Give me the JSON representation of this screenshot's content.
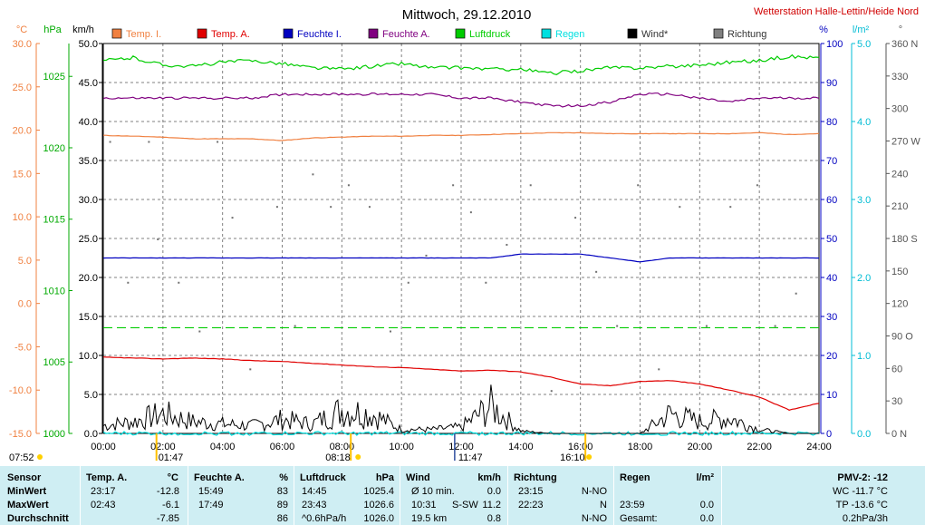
{
  "header": {
    "title": "Mittwoch, 29.12.2010",
    "station": "Wetterstation Halle-Lettin/Heide Nord"
  },
  "units": {
    "celsius": "°C",
    "hpa": "hPa",
    "kmh": "km/h",
    "percent": "%",
    "lm2": "l/m²",
    "degree": "°"
  },
  "legend": [
    {
      "label": "Temp. I.",
      "color": "#f08040"
    },
    {
      "label": "Temp. A.",
      "color": "#e00000"
    },
    {
      "label": "Feuchte I.",
      "color": "#0000c0"
    },
    {
      "label": "Feuchte A.",
      "color": "#800080"
    },
    {
      "label": "Luftdruck",
      "color": "#00cc00"
    },
    {
      "label": "Regen",
      "color": "#00e0e0"
    },
    {
      "label": "Wind*",
      "color": "#000000"
    },
    {
      "label": "Richtung",
      "color": "#808080"
    }
  ],
  "axes": {
    "temp": [
      "30.0",
      "25.0",
      "20.0",
      "15.0",
      "10.0",
      "5.0",
      "0.0",
      "-5.0",
      "-10.0",
      "-15.0"
    ],
    "pressure": [
      "1025",
      "1020",
      "1015",
      "1010",
      "1005",
      "1000"
    ],
    "wind": [
      "50.0",
      "45.0",
      "40.0",
      "35.0",
      "30.0",
      "25.0",
      "20.0",
      "15.0",
      "10.0",
      "5.0",
      "0.0"
    ],
    "humidity": [
      "100",
      "90",
      "80",
      "70",
      "60",
      "50",
      "40",
      "30",
      "20",
      "10",
      "0"
    ],
    "rain": [
      "5.0",
      "4.0",
      "3.0",
      "2.0",
      "1.0",
      "0.0"
    ],
    "direction": [
      "360 N",
      "330",
      "300",
      "270 W",
      "240",
      "210",
      "180 S",
      "150",
      "120",
      "90 O",
      "60",
      "30",
      "0 N"
    ],
    "time": [
      "00:00",
      "02:00",
      "04:00",
      "06:00",
      "08:00",
      "10:00",
      "12:00",
      "14:00",
      "16:00",
      "18:00",
      "20:00",
      "22:00",
      "24:00"
    ]
  },
  "markers": {
    "sunrise": "07:52",
    "temp_min_time": "01:47",
    "sun_max": "08:18",
    "noon": "11:47",
    "sunset": "16:10"
  },
  "colors": {
    "temp_i": "#f08040",
    "temp_a": "#e00000",
    "feuchte_i": "#0000c0",
    "feuchte_a": "#800080",
    "luftdruck": "#00cc00",
    "regen": "#00e0e0",
    "wind": "#000000",
    "richtung": "#808080",
    "table_bg": "#cfeef3"
  },
  "chart_data": {
    "type": "line",
    "title": "Mittwoch, 29.12.2010",
    "x": [
      "00:00",
      "01:00",
      "02:00",
      "03:00",
      "04:00",
      "05:00",
      "06:00",
      "07:00",
      "08:00",
      "09:00",
      "10:00",
      "11:00",
      "12:00",
      "13:00",
      "14:00",
      "15:00",
      "16:00",
      "17:00",
      "18:00",
      "19:00",
      "20:00",
      "21:00",
      "22:00",
      "23:00",
      "24:00"
    ],
    "xlim": [
      "00:00",
      "24:00"
    ],
    "series": [
      {
        "name": "Temp. I.",
        "axis": "temp_c",
        "ylim": [
          -15,
          30
        ],
        "values": [
          19.4,
          19.3,
          19.2,
          19.0,
          19.0,
          19.0,
          18.8,
          19.1,
          19.2,
          19.3,
          19.3,
          19.4,
          19.4,
          19.5,
          19.6,
          19.7,
          19.7,
          19.6,
          19.6,
          19.6,
          19.6,
          19.6,
          19.7,
          19.5,
          19.6
        ]
      },
      {
        "name": "Temp. A.",
        "axis": "temp_c",
        "ylim": [
          -15,
          30
        ],
        "values": [
          -6.2,
          -6.3,
          -6.4,
          -6.3,
          -6.4,
          -6.6,
          -6.7,
          -6.9,
          -7.1,
          -7.3,
          -7.4,
          -7.6,
          -7.8,
          -7.7,
          -7.9,
          -8.5,
          -9.3,
          -9.5,
          -9.0,
          -8.9,
          -9.3,
          -10.0,
          -10.8,
          -12.3,
          -11.5
        ]
      },
      {
        "name": "Feuchte I.",
        "axis": "humidity_pct",
        "ylim": [
          0,
          100
        ],
        "values": [
          45,
          45,
          45,
          45,
          45,
          45,
          45,
          45,
          45,
          45,
          45,
          45,
          45,
          45,
          46,
          46,
          46,
          45,
          44,
          45,
          45,
          45,
          45,
          45,
          45
        ]
      },
      {
        "name": "Feuchte A.",
        "axis": "humidity_pct",
        "ylim": [
          0,
          100
        ],
        "values": [
          86,
          86,
          86,
          86,
          86,
          86,
          87,
          87,
          87,
          87,
          87,
          87,
          86,
          86,
          85,
          84,
          84,
          85,
          87,
          87,
          86,
          85,
          86,
          86,
          86
        ]
      },
      {
        "name": "Luftdruck",
        "axis": "pressure_hpa",
        "ylim": [
          1000,
          1028
        ],
        "values": [
          1026.1,
          1026.3,
          1025.8,
          1025.7,
          1026.0,
          1026.1,
          1025.9,
          1025.6,
          1025.5,
          1025.7,
          1025.9,
          1025.6,
          1025.6,
          1025.5,
          1025.5,
          1025.2,
          1025.4,
          1025.6,
          1025.6,
          1025.7,
          1025.8,
          1026.0,
          1026.1,
          1026.4,
          1026.3
        ]
      },
      {
        "name": "Regen",
        "axis": "rain_lm2",
        "ylim": [
          0,
          5
        ],
        "values": [
          0,
          0,
          0,
          0,
          0,
          0,
          0,
          0,
          0,
          0,
          0,
          0,
          0,
          0,
          0,
          0,
          0,
          0,
          0,
          0,
          0,
          0,
          0,
          0,
          0
        ]
      },
      {
        "name": "Wind*",
        "axis": "wind_kmh",
        "ylim": [
          0,
          50
        ],
        "values": [
          1.0,
          1.5,
          2.5,
          1.5,
          1.2,
          1.0,
          1.8,
          1.2,
          3.0,
          2.5,
          0.5,
          0.5,
          0.8,
          3.5,
          0.3,
          0.0,
          0.0,
          0.0,
          0.0,
          2.5,
          1.5,
          2.0,
          0.5,
          0.0,
          0.0
        ]
      }
    ],
    "reference_lines": [
      {
        "name": "Luftdruck",
        "axis": "pressure_hpa",
        "value": 1007.4
      }
    ],
    "direction_points_deg": [
      [
        0.2,
        270
      ],
      [
        0.8,
        140
      ],
      [
        1.5,
        270
      ],
      [
        1.8,
        180
      ],
      [
        2.5,
        140
      ],
      [
        3.2,
        95
      ],
      [
        3.8,
        270
      ],
      [
        4.3,
        200
      ],
      [
        4.9,
        60
      ],
      [
        5.8,
        210
      ],
      [
        6.4,
        100
      ],
      [
        7.0,
        240
      ],
      [
        7.6,
        210
      ],
      [
        8.2,
        230
      ],
      [
        8.9,
        210
      ],
      [
        9.6,
        95
      ],
      [
        10.2,
        140
      ],
      [
        10.8,
        165
      ],
      [
        11.7,
        230
      ],
      [
        12.3,
        205
      ],
      [
        12.8,
        140
      ],
      [
        13.5,
        175
      ],
      [
        14.3,
        230
      ],
      [
        15.0,
        40
      ],
      [
        15.8,
        200
      ],
      [
        16.5,
        150
      ],
      [
        17.2,
        100
      ],
      [
        17.9,
        230
      ],
      [
        18.6,
        60
      ],
      [
        19.3,
        210
      ],
      [
        20.2,
        100
      ],
      [
        21.0,
        210
      ],
      [
        21.9,
        230
      ],
      [
        22.5,
        100
      ],
      [
        23.2,
        130
      ]
    ]
  },
  "table": {
    "headers": {
      "sensor": "Sensor",
      "temp_a": "Temp. A.",
      "temp_unit": "°C",
      "feuchte_a": "Feuchte A.",
      "feuchte_unit": "%",
      "luftdruck": "Luftdruck",
      "luftdruck_unit": "hPa",
      "wind": "Wind",
      "wind_unit": "km/h",
      "richtung": "Richtung",
      "regen": "Regen",
      "regen_unit": "l/m²",
      "pmv": "PMV-2: -12"
    },
    "rows": [
      {
        "label": "MinWert",
        "temp_time": "23:17",
        "temp_val": "-12.8",
        "feu_time": "15:49",
        "feu_val": "83",
        "luft_time": "14:45",
        "luft_val": "1025.4",
        "wind_time": "Ø 10 min.",
        "wind_val": "0.0",
        "ri_time": "23:15",
        "ri_val": "N-NO",
        "reg_time": "",
        "reg_val": "",
        "pmv": "WC -11.7 °C"
      },
      {
        "label": "MaxWert",
        "temp_time": "02:43",
        "temp_val": "-6.1",
        "feu_time": "17:49",
        "feu_val": "89",
        "luft_time": "23:43",
        "luft_val": "1026.6",
        "wind_time": "10:31",
        "wind_dir": "S-SW",
        "wind_val": "11.2",
        "ri_time": "22:23",
        "ri_val": "N",
        "reg_time": "23:59",
        "reg_val": "0.0",
        "pmv": "TP -13.6 °C"
      },
      {
        "label": "Durchschnitt",
        "temp_time": "",
        "temp_val": "-7.85",
        "feu_time": "",
        "feu_val": "86",
        "luft_time": "^0.6hPa/h",
        "luft_val": "1026.0",
        "wind_time": "19.5 km",
        "wind_val": "0.8",
        "ri_time": "",
        "ri_val": "N-NO",
        "reg_time": "Gesamt:",
        "reg_val": "0.0",
        "pmv": "0.2hPa/3h"
      }
    ]
  }
}
